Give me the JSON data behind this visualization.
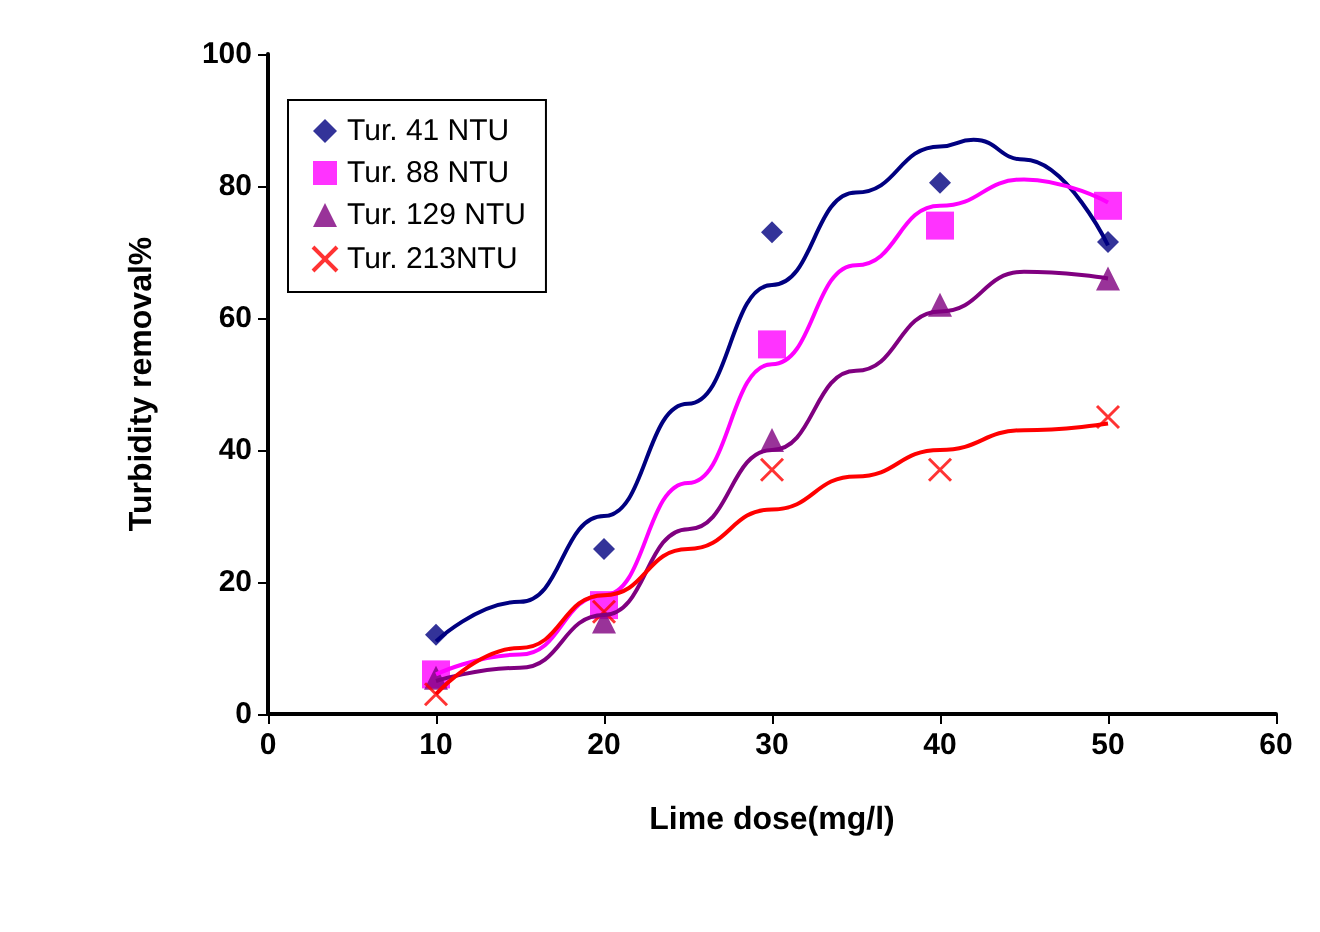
{
  "chart_data": {
    "type": "scatter",
    "xlabel": "Lime dose(mg/l)",
    "ylabel": "Turbidity removal%",
    "x": [
      10,
      20,
      30,
      40,
      50
    ],
    "series": [
      {
        "name": "Tur. 41 NTU",
        "color": "#000080",
        "marker": "diamond",
        "values": [
          12,
          25,
          73,
          80.5,
          71.5
        ]
      },
      {
        "name": "Tur. 88 NTU",
        "color": "#ff00ff",
        "marker": "square",
        "values": [
          6,
          16.5,
          56,
          74,
          77
        ]
      },
      {
        "name": "Tur. 129 NTU",
        "color": "#800080",
        "marker": "triangle",
        "values": [
          5.5,
          14,
          41.5,
          62,
          66
        ]
      },
      {
        "name": "Tur. 213NTU",
        "color": "#ff0000",
        "marker": "cross",
        "values": [
          3,
          15.5,
          37,
          37,
          45
        ]
      },
      {
        "type": "line",
        "color": "#000080",
        "marker": "none",
        "x": [
          10,
          15,
          20,
          25,
          30,
          35,
          40,
          42,
          45,
          50
        ],
        "values": [
          11,
          17,
          30,
          47,
          65,
          79,
          86,
          87,
          84,
          71
        ]
      },
      {
        "type": "line",
        "color": "#ff00ff",
        "marker": "none",
        "x": [
          10,
          15,
          20,
          25,
          30,
          35,
          40,
          45,
          50
        ],
        "values": [
          6,
          9,
          18,
          35,
          53,
          68,
          77,
          81,
          77.5
        ]
      },
      {
        "type": "line",
        "color": "#800080",
        "marker": "none",
        "x": [
          10,
          15,
          20,
          25,
          30,
          35,
          40,
          45,
          50
        ],
        "values": [
          5,
          7,
          15,
          28,
          40,
          52,
          61,
          67,
          66
        ]
      },
      {
        "type": "line",
        "color": "#ff0000",
        "marker": "none",
        "x": [
          10,
          15,
          20,
          25,
          30,
          35,
          40,
          45,
          50
        ],
        "values": [
          3,
          10,
          18,
          25,
          31,
          36,
          40,
          43,
          44
        ]
      }
    ],
    "xlim": [
      0,
      60
    ],
    "xticks": [
      0,
      10,
      20,
      30,
      40,
      50,
      60
    ],
    "ylim": [
      0,
      100
    ],
    "yticks": [
      0,
      20,
      40,
      60,
      80,
      100
    ],
    "grid": false,
    "legend": "top left"
  }
}
